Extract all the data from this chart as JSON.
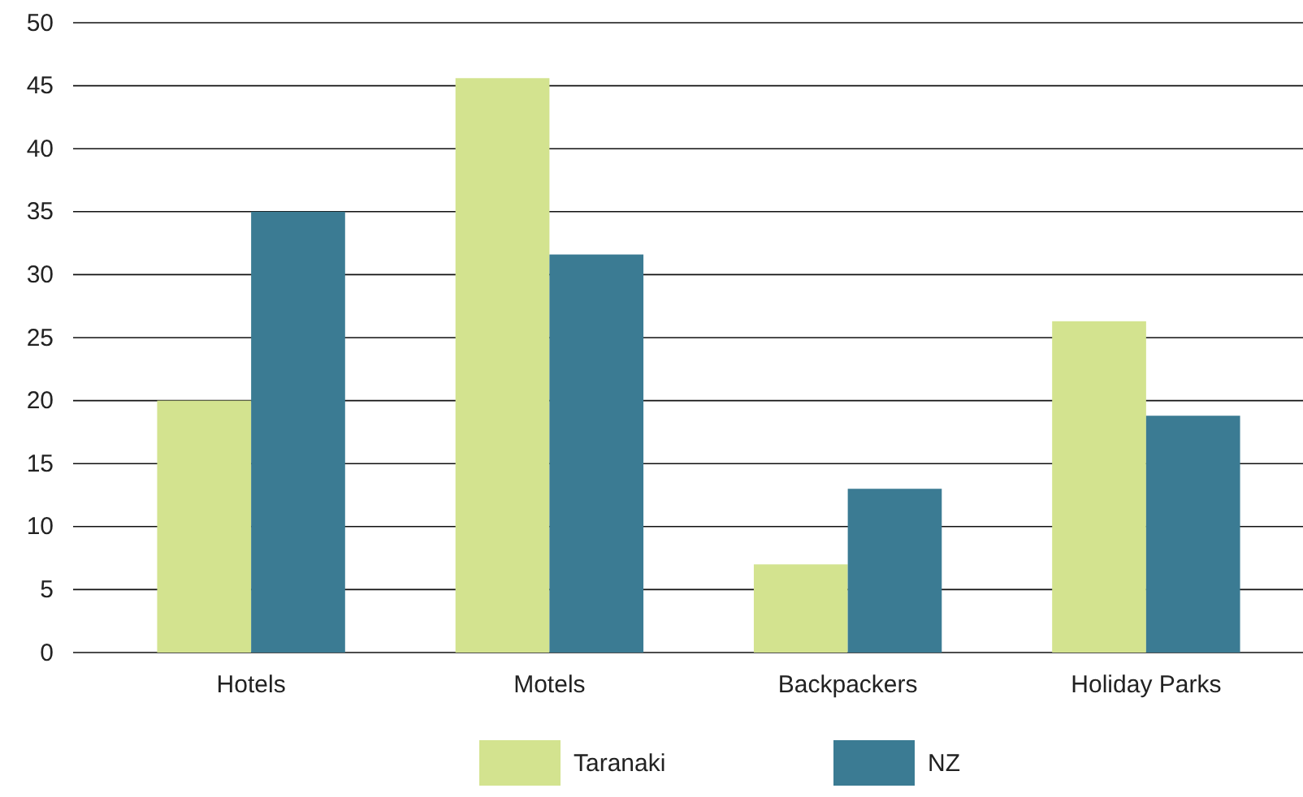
{
  "chart_data": {
    "type": "bar",
    "categories": [
      "Hotels",
      "Motels",
      "Backpackers",
      "Holiday Parks"
    ],
    "series": [
      {
        "name": "Taranaki",
        "color": "#d3e38f",
        "values": [
          20,
          45.6,
          7,
          26.3
        ]
      },
      {
        "name": "NZ",
        "color": "#3b7b93",
        "values": [
          35,
          31.6,
          13,
          18.8
        ]
      }
    ],
    "ylim": [
      0,
      50
    ],
    "yticks": [
      0,
      5,
      10,
      15,
      20,
      25,
      30,
      35,
      40,
      45,
      50
    ],
    "grid": "y",
    "legend": "bottom"
  }
}
